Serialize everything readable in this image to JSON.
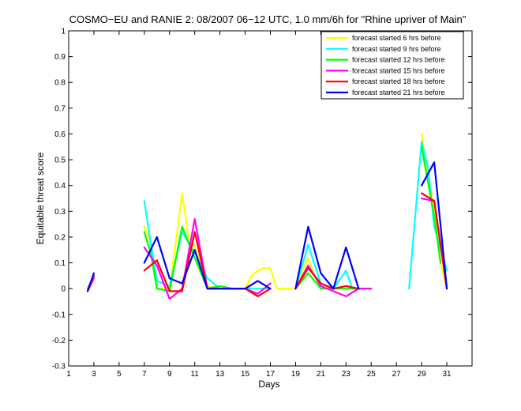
{
  "chart_data": {
    "type": "line",
    "title": "COSMO−EU and RANIE 2: 08/2007 06−12 UTC, 1.0 mm/6h for \"Rhine upriver of Main\"",
    "xlabel": "Days",
    "ylabel": "Equitable threat score",
    "xlim": [
      1,
      33
    ],
    "ylim": [
      -0.3,
      1
    ],
    "xticks": [
      1,
      3,
      5,
      7,
      9,
      11,
      13,
      15,
      17,
      19,
      21,
      23,
      25,
      27,
      29,
      31
    ],
    "yticks": [
      -0.3,
      -0.2,
      -0.1,
      0,
      0.1,
      0.2,
      0.3,
      0.4,
      0.5,
      0.6,
      0.7,
      0.8,
      0.9,
      1
    ],
    "legend_position": "top-right",
    "series": [
      {
        "name": "forecast started 6 hrs before",
        "color": "#ffff00",
        "segments": [
          [
            [
              2.5,
              0.0
            ],
            [
              3,
              0.04
            ]
          ],
          [
            [
              7,
              0.24
            ],
            [
              7.5,
              0.18
            ],
            [
              8,
              0.0
            ],
            [
              9,
              0.0
            ],
            [
              9.5,
              0.18
            ],
            [
              10,
              0.37
            ],
            [
              10.5,
              0.2
            ],
            [
              11,
              0.16
            ],
            [
              11.5,
              0.1
            ],
            [
              12,
              0.01
            ],
            [
              13,
              0.0
            ],
            [
              14,
              0.0
            ],
            [
              15,
              0.0
            ],
            [
              15.5,
              0.05
            ],
            [
              16,
              0.07
            ],
            [
              16.5,
              0.08
            ],
            [
              17,
              0.08
            ],
            [
              17.5,
              0.0
            ],
            [
              18,
              0.0
            ],
            [
              19,
              0.0
            ],
            [
              19.5,
              0.06
            ],
            [
              20,
              0.12
            ],
            [
              20.5,
              0.05
            ],
            [
              21,
              0.0
            ],
            [
              21.5,
              0.0
            ],
            [
              22,
              0.0
            ],
            [
              23,
              0.01
            ],
            [
              23.5,
              0.0
            ],
            [
              24,
              0.0
            ],
            [
              25,
              0.0
            ]
          ],
          [
            [
              29,
              0.6
            ],
            [
              29.5,
              0.44
            ],
            [
              30,
              0.3
            ],
            [
              30.5,
              0.1
            ],
            [
              31,
              0.0
            ]
          ]
        ]
      },
      {
        "name": "forecast started 9 hrs before",
        "color": "#00ffff",
        "segments": [
          [
            [
              2.5,
              -0.01
            ],
            [
              3,
              0.05
            ]
          ],
          [
            [
              7,
              0.34
            ],
            [
              7.5,
              0.18
            ],
            [
              8,
              0.03
            ],
            [
              9,
              0.01
            ],
            [
              10,
              0.22
            ],
            [
              11,
              0.14
            ],
            [
              12,
              0.04
            ],
            [
              13,
              0.0
            ],
            [
              14,
              0.0
            ],
            [
              15,
              0.0
            ],
            [
              16,
              0.0
            ],
            [
              17,
              0.0
            ]
          ],
          [
            [
              19,
              0.0
            ],
            [
              20,
              0.17
            ],
            [
              21,
              0.02
            ],
            [
              22,
              0.0
            ],
            [
              23,
              0.07
            ],
            [
              23.5,
              0.0
            ],
            [
              24,
              0.0
            ]
          ],
          [
            [
              28,
              0.0
            ],
            [
              29,
              0.57
            ],
            [
              29.5,
              0.47
            ],
            [
              30,
              0.24
            ],
            [
              31,
              0.07
            ]
          ]
        ]
      },
      {
        "name": "forecast started 12 hrs before",
        "color": "#00ff00",
        "segments": [
          [
            [
              2.5,
              0.0
            ],
            [
              3,
              0.05
            ]
          ],
          [
            [
              7,
              0.22
            ],
            [
              7.5,
              0.14
            ],
            [
              8,
              0.0
            ],
            [
              9,
              -0.01
            ],
            [
              10,
              0.24
            ],
            [
              11,
              0.12
            ],
            [
              12,
              0.0
            ],
            [
              13,
              0.01
            ],
            [
              14,
              0.0
            ],
            [
              15,
              0.0
            ]
          ],
          [
            [
              19,
              0.0
            ],
            [
              20,
              0.06
            ],
            [
              21,
              0.0
            ],
            [
              22,
              0.0
            ],
            [
              23,
              0.0
            ],
            [
              24,
              0.0
            ],
            [
              25,
              0.0
            ]
          ],
          [
            [
              29,
              0.55
            ],
            [
              30,
              0.28
            ],
            [
              30.5,
              0.1
            ]
          ]
        ]
      },
      {
        "name": "forecast started 15 hrs before",
        "color": "#ff00ff",
        "segments": [
          [
            [
              2.5,
              -0.01
            ],
            [
              3,
              0.04
            ]
          ],
          [
            [
              7,
              0.16
            ],
            [
              8,
              0.09
            ],
            [
              9,
              -0.04
            ],
            [
              10,
              0.0
            ],
            [
              11,
              0.27
            ],
            [
              12,
              0.0
            ],
            [
              13,
              0.0
            ],
            [
              14,
              0.0
            ],
            [
              15,
              0.0
            ],
            [
              16,
              -0.02
            ],
            [
              17,
              0.02
            ]
          ],
          [
            [
              19,
              0.0
            ],
            [
              20,
              0.09
            ],
            [
              21,
              0.01
            ],
            [
              22,
              -0.01
            ],
            [
              23,
              -0.03
            ],
            [
              24,
              0.0
            ],
            [
              25,
              0.0
            ]
          ],
          [
            [
              29,
              0.35
            ],
            [
              30,
              0.34
            ],
            [
              31,
              0.0
            ]
          ]
        ]
      },
      {
        "name": "forecast started 18 hrs before",
        "color": "#ff0000",
        "segments": [
          [
            [
              2.5,
              -0.01
            ],
            [
              3,
              0.05
            ]
          ],
          [
            [
              7,
              0.07
            ],
            [
              8,
              0.11
            ],
            [
              9,
              -0.01
            ],
            [
              10,
              -0.01
            ],
            [
              11,
              0.22
            ],
            [
              12,
              0.0
            ],
            [
              13,
              0.0
            ],
            [
              14,
              0.0
            ],
            [
              15,
              0.0
            ],
            [
              16,
              -0.03
            ],
            [
              17,
              0.0
            ]
          ],
          [
            [
              19,
              0.0
            ],
            [
              20,
              0.08
            ],
            [
              21,
              0.02
            ],
            [
              22,
              0.0
            ],
            [
              23,
              0.01
            ],
            [
              24,
              0.0
            ]
          ],
          [
            [
              29,
              0.37
            ],
            [
              30,
              0.34
            ],
            [
              31,
              0.0
            ]
          ]
        ]
      },
      {
        "name": "forecast started 21 hrs before",
        "color": "#0000ff",
        "segments": [
          [
            [
              2.5,
              -0.01
            ],
            [
              3,
              0.06
            ]
          ],
          [
            [
              7,
              0.1
            ],
            [
              8,
              0.2
            ],
            [
              9,
              0.04
            ],
            [
              10,
              0.02
            ],
            [
              11,
              0.15
            ],
            [
              12,
              0.0
            ],
            [
              13,
              0.0
            ],
            [
              14,
              0.0
            ],
            [
              15,
              0.0
            ],
            [
              16,
              0.03
            ],
            [
              17,
              0.0
            ]
          ],
          [
            [
              19,
              0.0
            ],
            [
              20,
              0.24
            ],
            [
              21,
              0.06
            ],
            [
              22,
              0.0
            ],
            [
              23,
              0.16
            ],
            [
              24,
              0.0
            ]
          ],
          [
            [
              29,
              0.4
            ],
            [
              30,
              0.49
            ],
            [
              31,
              0.0
            ]
          ]
        ]
      }
    ]
  }
}
